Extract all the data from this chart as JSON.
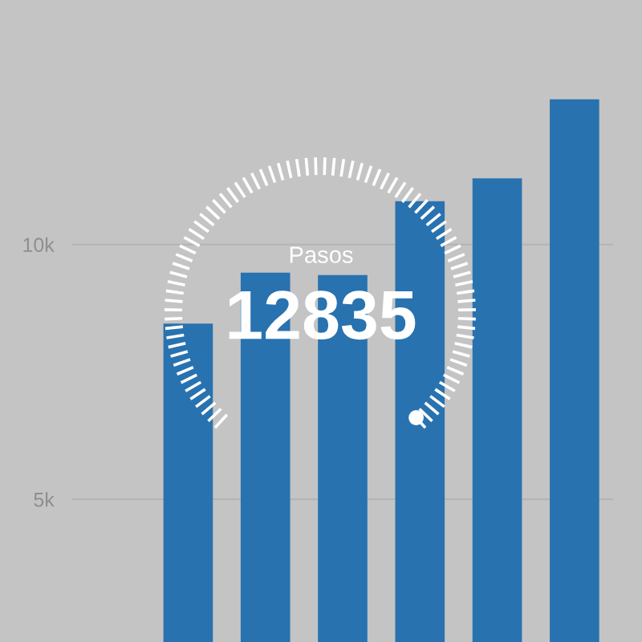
{
  "chart_data": {
    "type": "bar",
    "categories": [
      null,
      null,
      null,
      null,
      null,
      null,
      null
    ],
    "values": [
      null,
      8450,
      9450,
      9400,
      10850,
      11300,
      12850
    ],
    "color": "#2872b0",
    "ylim": [
      2200,
      14800
    ],
    "yticks": [
      {
        "value": 5000,
        "label": "5k"
      },
      {
        "value": 10000,
        "label": "10k"
      }
    ],
    "grid": "y",
    "tick_labels": "y",
    "annotations": [
      "Pasos",
      "12835"
    ]
  }
}
